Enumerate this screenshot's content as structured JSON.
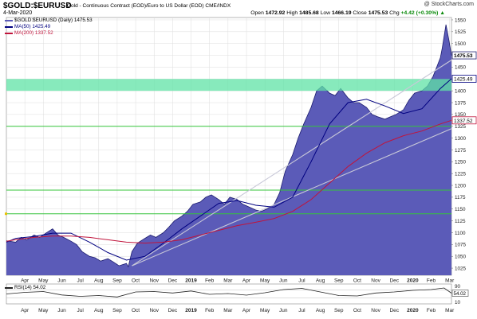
{
  "header": {
    "symbol": "$GOLD:$EURUSD",
    "description": "Gold - Continuous Contract (EOD)/Euro to US Dollar (EOD) CME/INDX",
    "date": "4-Mar-2020",
    "watermark": "@ StockCharts.com",
    "open_label": "Open",
    "open": "1472.92",
    "high_label": "High",
    "high": "1485.68",
    "low_label": "Low",
    "low": "1466.19",
    "close_label": "Close",
    "close": "1475.53",
    "chg_label": "Chg",
    "chg": "+4.42 (+0.30%)",
    "chg_arrow": "▲"
  },
  "colors": {
    "price_fill": "#5b5bb8",
    "price_line": "#1c1c6e",
    "ma50": "#000080",
    "ma200": "#c0143c",
    "support_band": "#5fe3a6",
    "h_line": "#35c43a",
    "trend_line": "#c8c8d8",
    "rsi": "#222222"
  },
  "chart_data": [
    {
      "type": "area",
      "title": "$GOLD:$EURUSD Gold - Continuous Contract (EOD)/Euro to US Dollar (EOD) CME/INDX",
      "subtitle": "4-Mar-2020",
      "ylim": [
        1010,
        1555
      ],
      "y_scale": "linear",
      "y_ticks": [
        1025,
        1050,
        1075,
        1100,
        1125,
        1150,
        1175,
        1200,
        1225,
        1250,
        1275,
        1300,
        1325,
        1350,
        1375,
        1400,
        1425,
        1450,
        1475,
        1500,
        1525,
        1550
      ],
      "y_axis_side": "right",
      "x_tick_labels": [
        "Apr",
        "May",
        "Jun",
        "Jul",
        "Aug",
        "Sep",
        "Oct",
        "Nov",
        "Dec",
        "2019",
        "Feb",
        "Mar",
        "Apr",
        "May",
        "Jun",
        "Jul",
        "Aug",
        "Sep",
        "Oct",
        "Nov",
        "Dec",
        "2020",
        "Feb",
        "Mar"
      ],
      "x_tick_months": [
        0.5,
        1.5,
        2.5,
        3.5,
        4.5,
        5.5,
        6.5,
        7.5,
        8.5,
        9.5,
        10.5,
        11.5,
        12.5,
        13.5,
        14.5,
        15.5,
        16.5,
        17.5,
        18.5,
        19.5,
        20.5,
        21.5,
        22.5,
        23.5
      ],
      "xlim_months": [
        -0.5,
        23.6
      ],
      "grid": true,
      "legend_position": "top-left",
      "series": [
        {
          "name": "$GOLD:$EURUSD (Daily) 1475.53",
          "role": "price",
          "x_months": [
            -0.5,
            0,
            0.3,
            0.6,
            1,
            1.3,
            1.6,
            2,
            2.3,
            2.6,
            3,
            3.3,
            3.6,
            4,
            4.3,
            4.6,
            5,
            5.3,
            5.6,
            6,
            6.1,
            6.3,
            6.6,
            7,
            7.3,
            7.6,
            8,
            8.3,
            8.6,
            9,
            9.3,
            9.6,
            10,
            10.3,
            10.6,
            11,
            11.3,
            11.6,
            12,
            12.3,
            12.6,
            13,
            13.3,
            13.6,
            14,
            14.3,
            14.6,
            15,
            15.3,
            15.6,
            16,
            16.3,
            16.6,
            17,
            17.3,
            17.6,
            18,
            18.3,
            18.6,
            19,
            19.3,
            19.6,
            20,
            20.3,
            20.6,
            21,
            21.3,
            21.6,
            22,
            22.3,
            22.6,
            22.8,
            23,
            23.1,
            23.3,
            23.45,
            23.6
          ],
          "values": [
            1083,
            1080,
            1090,
            1085,
            1095,
            1090,
            1098,
            1108,
            1095,
            1090,
            1082,
            1075,
            1060,
            1050,
            1047,
            1040,
            1045,
            1038,
            1030,
            1035,
            1028,
            1060,
            1078,
            1088,
            1095,
            1090,
            1100,
            1112,
            1125,
            1135,
            1145,
            1160,
            1165,
            1175,
            1180,
            1170,
            1160,
            1175,
            1170,
            1160,
            1155,
            1148,
            1145,
            1150,
            1160,
            1185,
            1230,
            1265,
            1300,
            1330,
            1365,
            1400,
            1410,
            1395,
            1390,
            1405,
            1385,
            1375,
            1375,
            1365,
            1350,
            1345,
            1340,
            1345,
            1350,
            1360,
            1380,
            1395,
            1400,
            1410,
            1430,
            1450,
            1470,
            1490,
            1540,
            1510,
            1475
          ]
        },
        {
          "name": "MA(50) 1425.49",
          "role": "ma50",
          "x_months": [
            -0.5,
            0,
            1,
            2,
            3,
            4,
            5,
            6,
            7,
            8,
            9,
            10,
            11,
            12,
            13,
            14,
            15,
            16,
            17,
            18,
            19,
            20,
            21,
            22,
            23,
            23.6
          ],
          "values": [
            1080,
            1088,
            1092,
            1099,
            1099,
            1080,
            1058,
            1042,
            1050,
            1078,
            1108,
            1135,
            1162,
            1168,
            1158,
            1154,
            1175,
            1250,
            1330,
            1375,
            1382,
            1368,
            1352,
            1362,
            1405,
            1425.49
          ]
        },
        {
          "name": "MA(200) 1337.52",
          "role": "ma200",
          "x_months": [
            -0.5,
            0,
            1,
            2,
            3,
            4,
            5,
            6,
            7,
            8,
            9,
            10,
            11,
            12,
            13,
            14,
            15,
            16,
            17,
            18,
            19,
            20,
            21,
            22,
            23,
            23.6
          ],
          "values": [
            1082,
            1085,
            1090,
            1093,
            1093,
            1090,
            1085,
            1080,
            1078,
            1080,
            1085,
            1095,
            1105,
            1115,
            1122,
            1130,
            1145,
            1170,
            1205,
            1240,
            1268,
            1290,
            1305,
            1315,
            1330,
            1337.52
          ]
        }
      ],
      "value_labels": [
        "1475.53",
        "1425.49",
        "1337.52"
      ],
      "annotations": {
        "support_band": [
          1400,
          1425
        ],
        "horizontal_lines": [
          1325,
          1190,
          1140
        ],
        "trend_line": {
          "x_months": [
            6.3,
            23.6
          ],
          "values": [
            1030,
            1465
          ]
        },
        "trend_line_2": {
          "x_months": [
            6.3,
            23.6
          ],
          "values": [
            1030,
            1320
          ]
        }
      }
    },
    {
      "type": "line",
      "title": "RSI(14) 54.02",
      "ylim": [
        0,
        100
      ],
      "y_ticks": [
        10,
        90
      ],
      "reference_lines": [
        30,
        70
      ],
      "value_label": "54.02",
      "series": [
        {
          "name": "RSI(14) 54.02",
          "x_months": [
            -0.5,
            0.5,
            1.5,
            2.5,
            3.5,
            4.5,
            5.5,
            6.5,
            7.5,
            8.5,
            9.5,
            10.5,
            11.5,
            12.5,
            13.5,
            14.5,
            15.5,
            16.5,
            17.5,
            18.5,
            19.5,
            20.5,
            21.5,
            22.5,
            23.2,
            23.6
          ],
          "values": [
            50,
            58,
            62,
            45,
            38,
            42,
            35,
            60,
            62,
            55,
            65,
            48,
            52,
            44,
            56,
            72,
            78,
            60,
            42,
            40,
            55,
            60,
            68,
            72,
            80,
            54.02
          ]
        }
      ]
    }
  ]
}
